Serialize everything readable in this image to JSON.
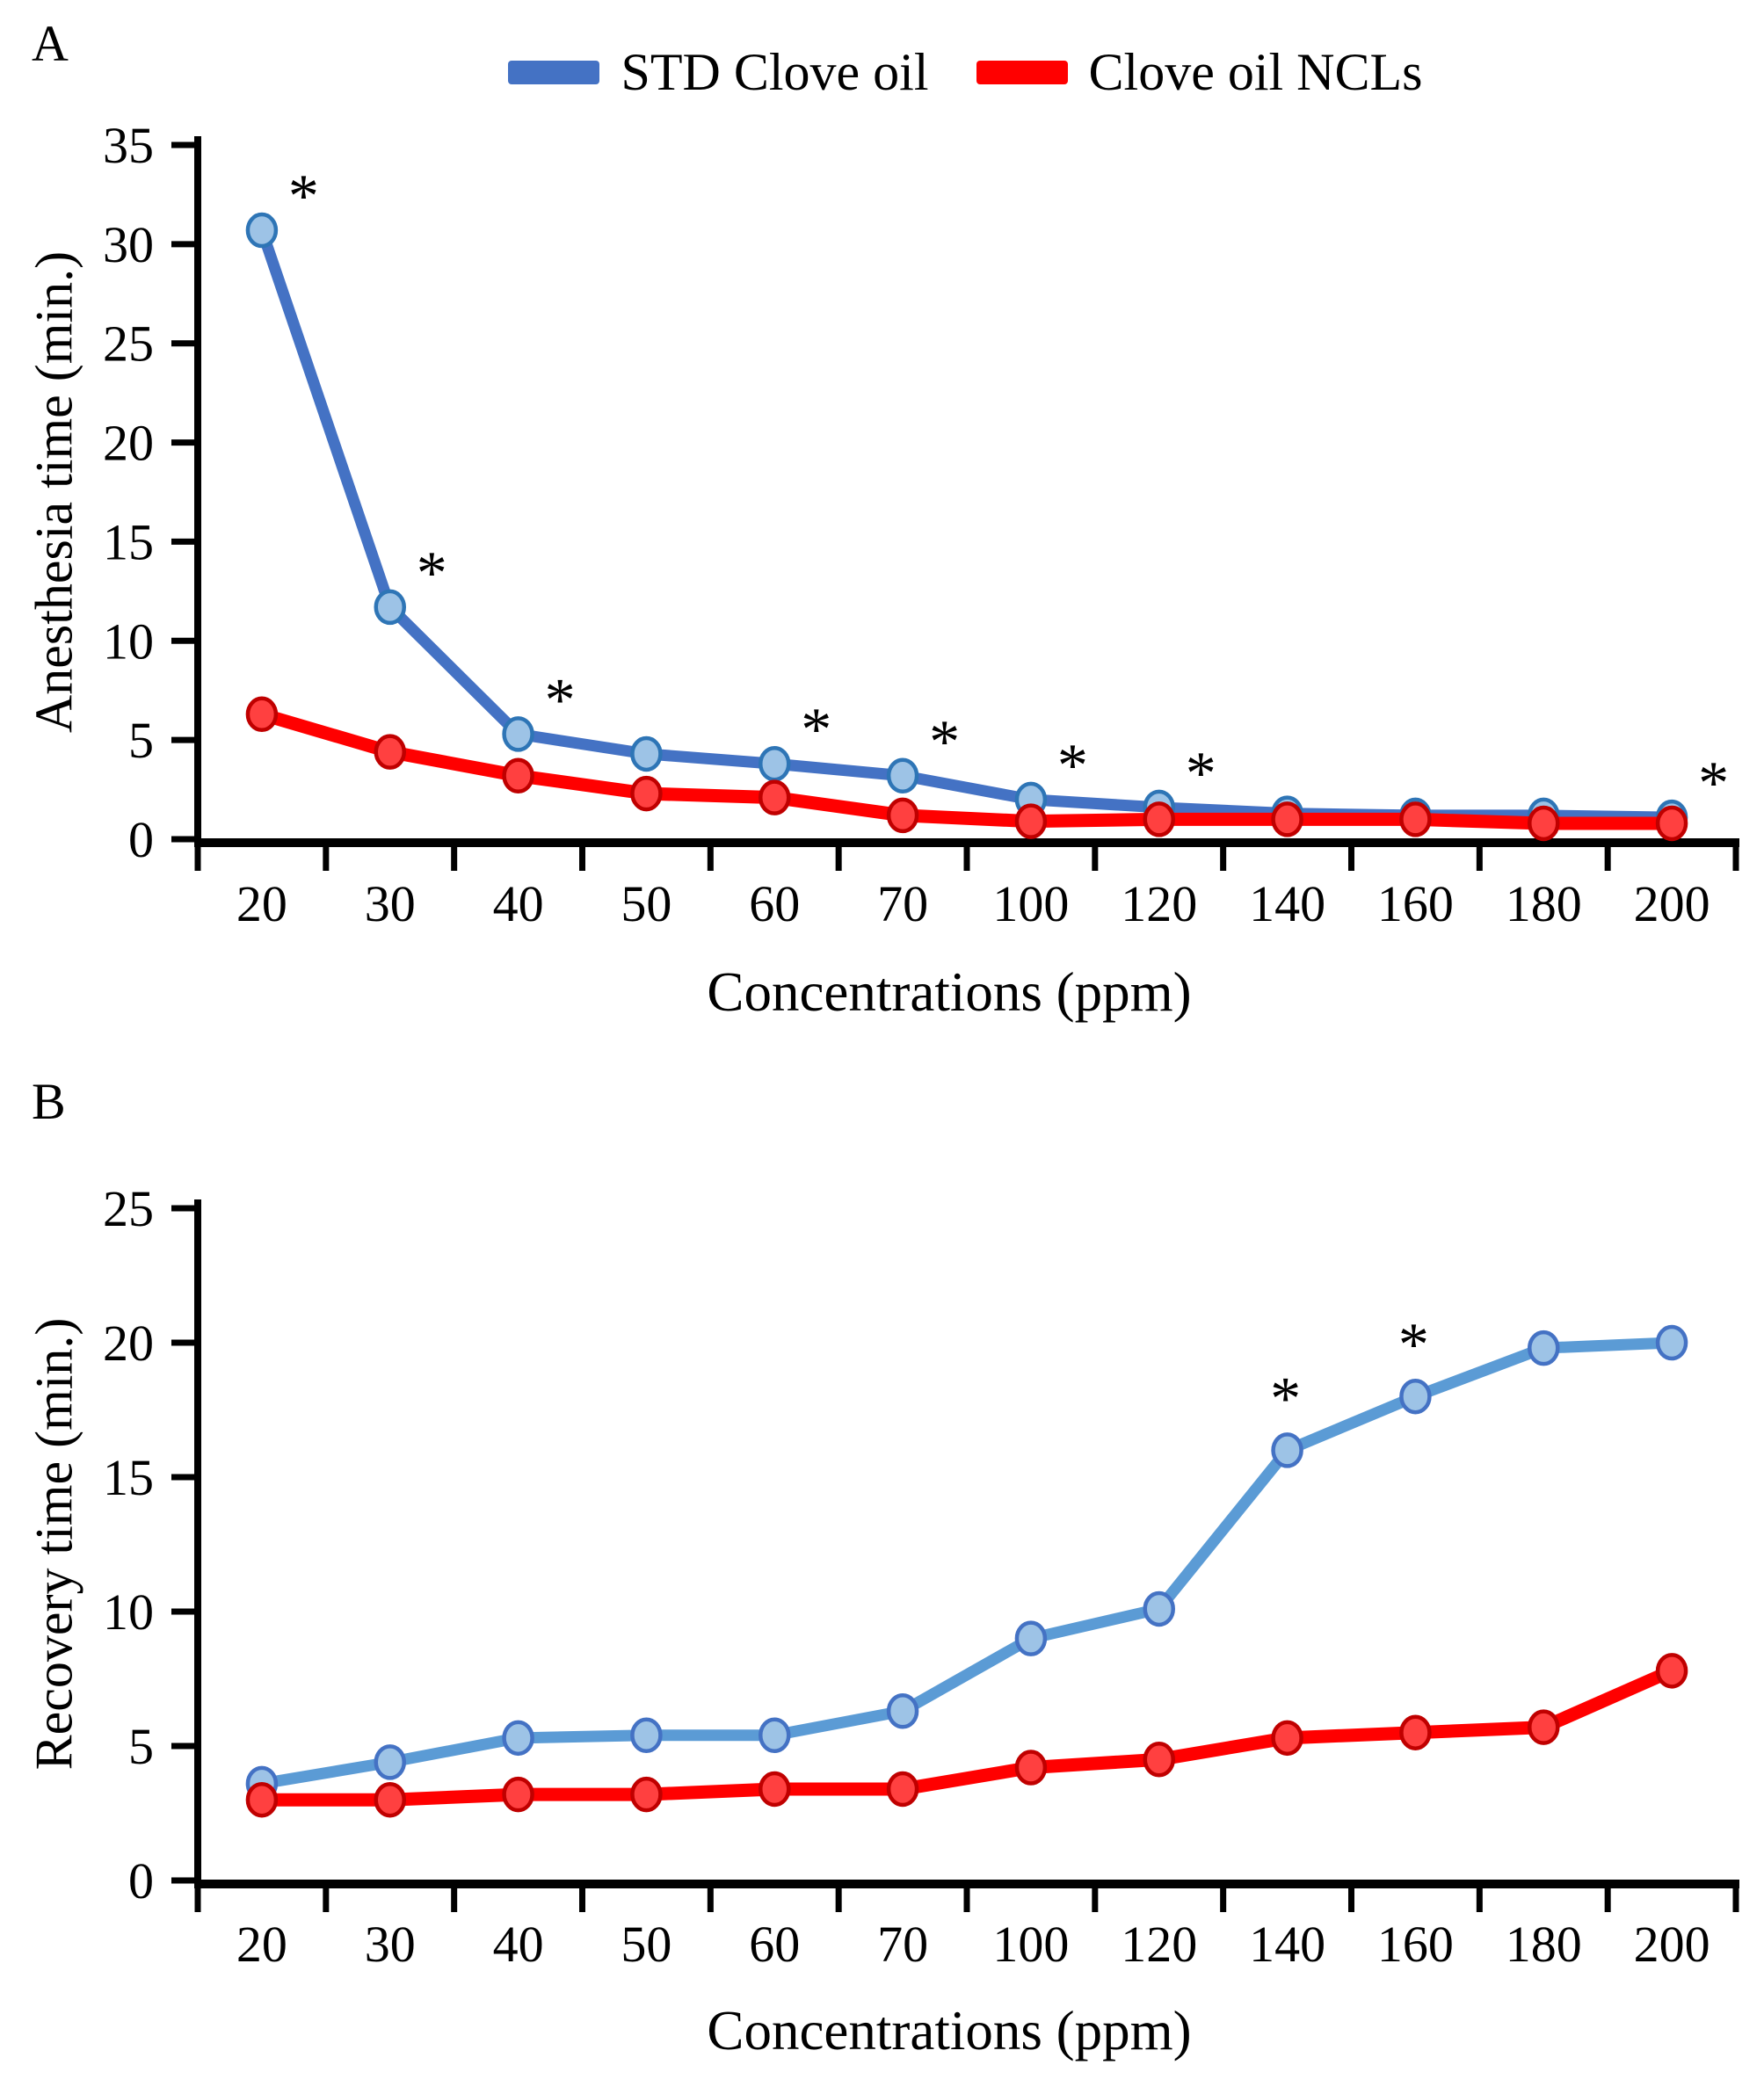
{
  "page": {
    "background": "#FFFFFF"
  },
  "panels": [
    {
      "label": "A"
    },
    {
      "label": "B"
    }
  ],
  "legend": {
    "items": [
      {
        "label": "STD Clove oil",
        "color": "#4472C4"
      },
      {
        "label": "Clove oil NCLs",
        "color": "#FF0000"
      }
    ]
  },
  "significance_marker": "*",
  "chart_data": [
    {
      "type": "line",
      "panel": "A",
      "title": "",
      "xlabel": "Concentrations (ppm)",
      "ylabel": "Anesthesia time (min.)",
      "categories": [
        20,
        30,
        40,
        50,
        60,
        70,
        100,
        120,
        140,
        160,
        180,
        200
      ],
      "ylim": [
        0,
        35
      ],
      "yticks": [
        0,
        5,
        10,
        15,
        20,
        25,
        30,
        35
      ],
      "grid": false,
      "legend_position": "top-center",
      "series": [
        {
          "name": "STD Clove oil",
          "line_color": "#4472C4",
          "marker_fill": "#9DC3E6",
          "marker_stroke": "#2E75B6",
          "values": [
            30.7,
            11.7,
            5.3,
            4.3,
            3.8,
            3.2,
            2.0,
            1.6,
            1.3,
            1.2,
            1.2,
            1.1
          ],
          "starred_categories": [
            20,
            30,
            40,
            60,
            70,
            100,
            120,
            200
          ]
        },
        {
          "name": "Clove oil NCLs",
          "line_color": "#FF0000",
          "marker_fill": "#FF4040",
          "marker_stroke": "#C00000",
          "values": [
            6.3,
            4.4,
            3.2,
            2.3,
            2.1,
            1.2,
            0.9,
            1.0,
            1.0,
            1.0,
            0.8,
            0.8
          ],
          "starred_categories": []
        }
      ]
    },
    {
      "type": "line",
      "panel": "B",
      "title": "",
      "xlabel": "Concentrations (ppm)",
      "ylabel": "Recovery time (min.)",
      "categories": [
        20,
        30,
        40,
        50,
        60,
        70,
        100,
        120,
        140,
        160,
        180,
        200
      ],
      "ylim": [
        0,
        25
      ],
      "yticks": [
        0,
        5,
        10,
        15,
        20,
        25
      ],
      "grid": false,
      "legend_position": "none",
      "series": [
        {
          "name": "STD Clove oil",
          "line_color": "#5B9BD5",
          "marker_fill": "#9DC3E6",
          "marker_stroke": "#4472C4",
          "values": [
            3.6,
            4.4,
            5.3,
            5.4,
            5.4,
            6.3,
            9.0,
            10.1,
            16.0,
            18.0,
            19.8,
            20.0
          ],
          "starred_categories": [
            140,
            160
          ]
        },
        {
          "name": "Clove oil NCLs",
          "line_color": "#FF0000",
          "marker_fill": "#FF4040",
          "marker_stroke": "#C00000",
          "values": [
            3.0,
            3.0,
            3.2,
            3.2,
            3.4,
            3.4,
            4.2,
            4.5,
            5.3,
            5.5,
            5.7,
            7.8
          ],
          "starred_categories": []
        }
      ]
    }
  ]
}
